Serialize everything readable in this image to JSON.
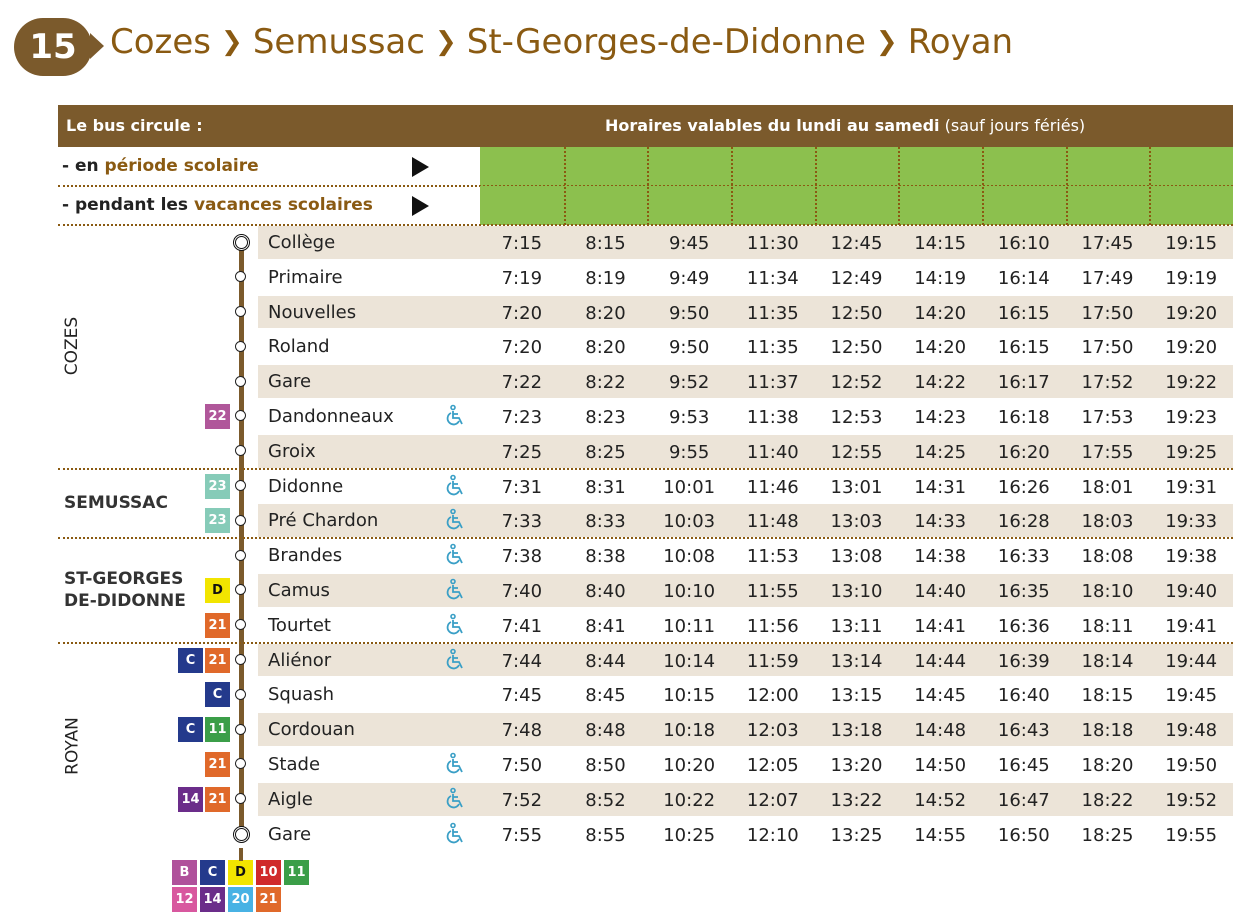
{
  "header": {
    "line": "15",
    "stops": [
      "Cozes",
      "Semussac",
      "St-Georges-de-Didonne",
      "Royan"
    ]
  },
  "table": {
    "left_title": "Le bus circule :",
    "right_title": "Horaires valables du lundi au samedi",
    "right_note": "(sauf jours fériés)",
    "periods": [
      [
        "- en",
        "période scolaire"
      ],
      [
        "- pendant les",
        "vacances scolaires"
      ]
    ],
    "zones": [
      {
        "lines": [
          "COZES"
        ],
        "stops": [
          {
            "name": "Collège",
            "connections": [],
            "accessible": false,
            "times": [
              "7:15",
              "8:15",
              "9:45",
              "11:30",
              "12:45",
              "14:15",
              "16:10",
              "17:45",
              "19:15"
            ]
          },
          {
            "name": "Primaire",
            "connections": [],
            "accessible": false,
            "times": [
              "7:19",
              "8:19",
              "9:49",
              "11:34",
              "12:49",
              "14:19",
              "16:14",
              "17:49",
              "19:19"
            ]
          },
          {
            "name": "Nouvelles",
            "connections": [],
            "accessible": false,
            "times": [
              "7:20",
              "8:20",
              "9:50",
              "11:35",
              "12:50",
              "14:20",
              "16:15",
              "17:50",
              "19:20"
            ]
          },
          {
            "name": "Roland",
            "connections": [],
            "accessible": false,
            "times": [
              "7:20",
              "8:20",
              "9:50",
              "11:35",
              "12:50",
              "14:20",
              "16:15",
              "17:50",
              "19:20"
            ]
          },
          {
            "name": "Gare",
            "connections": [],
            "accessible": false,
            "times": [
              "7:22",
              "8:22",
              "9:52",
              "11:37",
              "12:52",
              "14:22",
              "16:17",
              "17:52",
              "19:22"
            ]
          },
          {
            "name": "Dandonneaux",
            "connections": [
              "22"
            ],
            "accessible": true,
            "times": [
              "7:23",
              "8:23",
              "9:53",
              "11:38",
              "12:53",
              "14:23",
              "16:18",
              "17:53",
              "19:23"
            ]
          },
          {
            "name": "Groix",
            "connections": [],
            "accessible": false,
            "times": [
              "7:25",
              "8:25",
              "9:55",
              "11:40",
              "12:55",
              "14:25",
              "16:20",
              "17:55",
              "19:25"
            ]
          }
        ]
      },
      {
        "lines": [
          "SEMUSSAC"
        ],
        "stops": [
          {
            "name": "Didonne",
            "connections": [
              "23"
            ],
            "accessible": true,
            "times": [
              "7:31",
              "8:31",
              "10:01",
              "11:46",
              "13:01",
              "14:31",
              "16:26",
              "18:01",
              "19:31"
            ]
          },
          {
            "name": "Pré Chardon",
            "connections": [
              "23"
            ],
            "accessible": true,
            "times": [
              "7:33",
              "8:33",
              "10:03",
              "11:48",
              "13:03",
              "14:33",
              "16:28",
              "18:03",
              "19:33"
            ]
          }
        ]
      },
      {
        "lines": [
          "ST-GEORGES",
          "DE-DIDONNE"
        ],
        "stops": [
          {
            "name": "Brandes",
            "connections": [],
            "accessible": true,
            "times": [
              "7:38",
              "8:38",
              "10:08",
              "11:53",
              "13:08",
              "14:38",
              "16:33",
              "18:08",
              "19:38"
            ]
          },
          {
            "name": "Camus",
            "connections": [
              "D"
            ],
            "accessible": true,
            "times": [
              "7:40",
              "8:40",
              "10:10",
              "11:55",
              "13:10",
              "14:40",
              "16:35",
              "18:10",
              "19:40"
            ]
          },
          {
            "name": "Tourtet",
            "connections": [
              "21"
            ],
            "accessible": true,
            "times": [
              "7:41",
              "8:41",
              "10:11",
              "11:56",
              "13:11",
              "14:41",
              "16:36",
              "18:11",
              "19:41"
            ]
          }
        ]
      },
      {
        "lines": [
          "ROYAN"
        ],
        "stops": [
          {
            "name": "Aliénor",
            "connections": [
              "C",
              "21"
            ],
            "accessible": true,
            "times": [
              "7:44",
              "8:44",
              "10:14",
              "11:59",
              "13:14",
              "14:44",
              "16:39",
              "18:14",
              "19:44"
            ]
          },
          {
            "name": "Squash",
            "connections": [
              "C"
            ],
            "accessible": false,
            "times": [
              "7:45",
              "8:45",
              "10:15",
              "12:00",
              "13:15",
              "14:45",
              "16:40",
              "18:15",
              "19:45"
            ]
          },
          {
            "name": "Cordouan",
            "connections": [
              "C",
              "11"
            ],
            "accessible": false,
            "times": [
              "7:48",
              "8:48",
              "10:18",
              "12:03",
              "13:18",
              "14:48",
              "16:43",
              "18:18",
              "19:48"
            ]
          },
          {
            "name": "Stade",
            "connections": [
              "21"
            ],
            "accessible": true,
            "times": [
              "7:50",
              "8:50",
              "10:20",
              "12:05",
              "13:20",
              "14:50",
              "16:45",
              "18:20",
              "19:50"
            ]
          },
          {
            "name": "Aigle",
            "connections": [
              "14",
              "21"
            ],
            "accessible": true,
            "times": [
              "7:52",
              "8:52",
              "10:22",
              "12:07",
              "13:22",
              "14:52",
              "16:47",
              "18:22",
              "19:52"
            ]
          },
          {
            "name": "Gare",
            "connections": [],
            "accessible": true,
            "times": [
              "7:55",
              "8:55",
              "10:25",
              "12:10",
              "13:25",
              "14:55",
              "16:50",
              "18:25",
              "19:55"
            ]
          }
        ]
      }
    ],
    "terminal_connections": [
      [
        "B",
        "C",
        "D",
        "10",
        "11"
      ],
      [
        "12",
        "14",
        "20",
        "21"
      ]
    ],
    "connection_colors": {
      "B": "#b0519b",
      "C": "#243a8c",
      "D": "#f2e500",
      "10": "#d02a2a",
      "11": "#3b9e48",
      "12": "#d8589f",
      "14": "#6b2d8a",
      "20": "#48b2e4",
      "21": "#e0692a",
      "22": "#b0579a",
      "23": "#86cbb8"
    }
  }
}
